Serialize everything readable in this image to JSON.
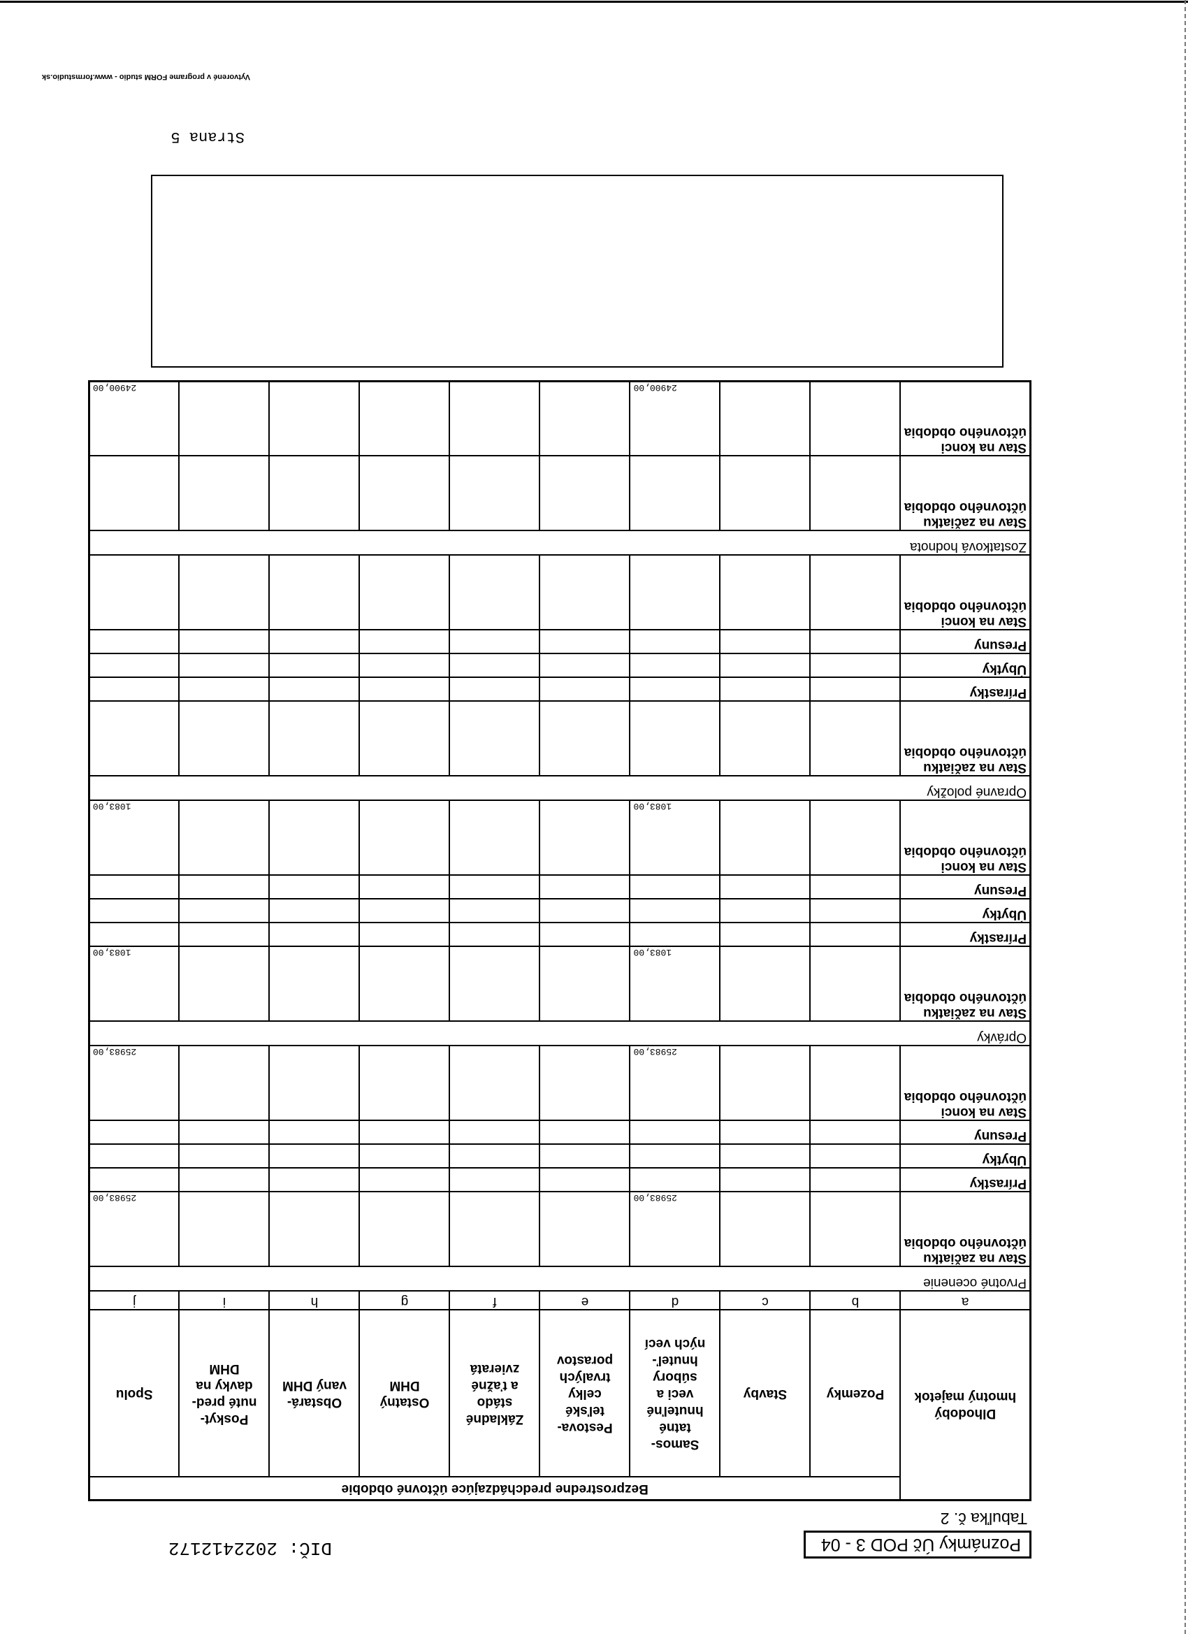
{
  "header": {
    "form_code": "Poznámky Úč POD 3 - 04",
    "table_label": "Tabuľka č. 2",
    "dic": "DIČ: 2022412172"
  },
  "table": {
    "period_header": "Bezprostredne predchádzajúce účtovné obdobie",
    "columns": [
      {
        "label": "Dlhodobý\nhmotný majetok",
        "letter": "a"
      },
      {
        "label": "Pozemky",
        "letter": "b"
      },
      {
        "label": "Stavby",
        "letter": "c"
      },
      {
        "label": "Samos-\ntatné\nhnuteľné\nveci a\nsúbory\nhnuteľ-\nných vecí",
        "letter": "d"
      },
      {
        "label": "Pestova-\nteľské\ncelky\ntrvalých\nporastov",
        "letter": "e"
      },
      {
        "label": "Základné\nstádo\na ťažné\nzvieratá",
        "letter": "f"
      },
      {
        "label": "Ostatný\nDHM",
        "letter": "g"
      },
      {
        "label": "Obstará-\nvaný DHM",
        "letter": "h"
      },
      {
        "label": "Poskyt-\nnuté pred-\ndavky na\nDHM",
        "letter": "i"
      },
      {
        "label": "Spolu",
        "letter": "j"
      }
    ],
    "sections": [
      {
        "title": "Prvotné ocenenie",
        "rows": [
          {
            "label": "Stav na začiatku účtovného obdobia",
            "values": [
              "",
              "",
              "25983,00",
              "",
              "",
              "",
              "",
              "",
              "25983,00"
            ]
          },
          {
            "label": "Prírastky",
            "values": [
              "",
              "",
              "",
              "",
              "",
              "",
              "",
              "",
              ""
            ]
          },
          {
            "label": "Úbytky",
            "values": [
              "",
              "",
              "",
              "",
              "",
              "",
              "",
              "",
              ""
            ]
          },
          {
            "label": "Presuny",
            "values": [
              "",
              "",
              "",
              "",
              "",
              "",
              "",
              "",
              ""
            ]
          },
          {
            "label": "Stav na konci účtovného obdobia",
            "values": [
              "",
              "",
              "25983,00",
              "",
              "",
              "",
              "",
              "",
              "25983,00"
            ]
          }
        ]
      },
      {
        "title": "Oprávky",
        "rows": [
          {
            "label": "Stav na začiatku účtovného obdobia",
            "values": [
              "",
              "",
              "1083,00",
              "",
              "",
              "",
              "",
              "",
              "1083,00"
            ]
          },
          {
            "label": "Prírastky",
            "values": [
              "",
              "",
              "",
              "",
              "",
              "",
              "",
              "",
              ""
            ]
          },
          {
            "label": "Úbytky",
            "values": [
              "",
              "",
              "",
              "",
              "",
              "",
              "",
              "",
              ""
            ]
          },
          {
            "label": "Presuny",
            "values": [
              "",
              "",
              "",
              "",
              "",
              "",
              "",
              "",
              ""
            ]
          },
          {
            "label": "Stav na konci účtovného obdobia",
            "values": [
              "",
              "",
              "1083,00",
              "",
              "",
              "",
              "",
              "",
              "1083,00"
            ]
          }
        ]
      },
      {
        "title": "Opravné položky",
        "rows": [
          {
            "label": "Stav na začiatku účtovného obdobia",
            "values": [
              "",
              "",
              "",
              "",
              "",
              "",
              "",
              "",
              ""
            ]
          },
          {
            "label": "Prírastky",
            "values": [
              "",
              "",
              "",
              "",
              "",
              "",
              "",
              "",
              ""
            ]
          },
          {
            "label": "Úbytky",
            "values": [
              "",
              "",
              "",
              "",
              "",
              "",
              "",
              "",
              ""
            ]
          },
          {
            "label": "Presuny",
            "values": [
              "",
              "",
              "",
              "",
              "",
              "",
              "",
              "",
              ""
            ]
          },
          {
            "label": "Stav na konci účtovného obdobia",
            "values": [
              "",
              "",
              "",
              "",
              "",
              "",
              "",
              "",
              ""
            ]
          }
        ]
      },
      {
        "title": "Zostatková hodnota",
        "rows": [
          {
            "label": "Stav na začiatku účtovného obdobia",
            "values": [
              "",
              "",
              "",
              "",
              "",
              "",
              "",
              "",
              ""
            ]
          },
          {
            "label": "Stav na konci účtovného obdobia",
            "values": [
              "",
              "",
              "24900,00",
              "",
              "",
              "",
              "",
              "",
              "24900,00"
            ]
          }
        ]
      }
    ]
  },
  "page_number": "Strana 5",
  "footer": "Vytvorené v programe FORM studio - www.formstudio.sk"
}
